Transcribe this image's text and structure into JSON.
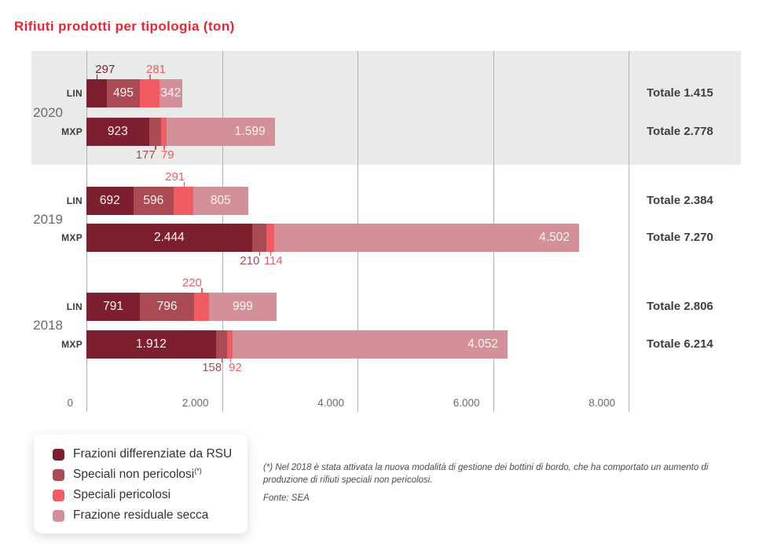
{
  "title": "Rifiuti prodotti per tipologia (ton)",
  "chart_data": {
    "type": "bar",
    "orientation": "horizontal",
    "title": "Rifiuti prodotti per tipologia (ton)",
    "unit": "ton",
    "xlim": [
      0,
      8000
    ],
    "grid": true,
    "legend_position": "bottom-left",
    "x_ticks": [
      "0",
      "2.000",
      "4.000",
      "6.000",
      "8.000"
    ],
    "x_tick_values": [
      0,
      2000,
      4000,
      6000,
      8000
    ],
    "series": [
      "Frazioni differenziate da RSU",
      "Speciali non pericolosi(*)",
      "Speciali pericolosi",
      "Frazione residuale secca"
    ],
    "series_colors": [
      "#7d1f2e",
      "#ac4a53",
      "#f15b62",
      "#d39099"
    ],
    "groups": [
      {
        "year": "2020",
        "highlighted": true,
        "rows": [
          {
            "airport": "LIN",
            "values": [
              297,
              495,
              281,
              342
            ],
            "value_labels": [
              "297",
              "495",
              "281",
              "342"
            ],
            "label_positions": [
              "above",
              "inside",
              "above",
              "inside"
            ],
            "total": 1415,
            "total_label": "Totale 1.415"
          },
          {
            "airport": "MXP",
            "values": [
              923,
              177,
              79,
              1599
            ],
            "value_labels": [
              "923",
              "177",
              "79",
              "1.599"
            ],
            "label_positions": [
              "inside",
              "below",
              "below",
              "inside"
            ],
            "total": 2778,
            "total_label": "Totale 2.778"
          }
        ]
      },
      {
        "year": "2019",
        "highlighted": false,
        "rows": [
          {
            "airport": "LIN",
            "values": [
              692,
              596,
              291,
              805
            ],
            "value_labels": [
              "692",
              "596",
              "291",
              "805"
            ],
            "label_positions": [
              "inside",
              "inside",
              "above",
              "inside"
            ],
            "total": 2384,
            "total_label": "Totale 2.384"
          },
          {
            "airport": "MXP",
            "values": [
              2444,
              210,
              114,
              4502
            ],
            "value_labels": [
              "2.444",
              "210",
              "114",
              "4.502"
            ],
            "label_positions": [
              "inside",
              "below",
              "below",
              "inside"
            ],
            "total": 7270,
            "total_label": "Totale 7.270"
          }
        ]
      },
      {
        "year": "2018",
        "highlighted": false,
        "rows": [
          {
            "airport": "LIN",
            "values": [
              791,
              796,
              220,
              999
            ],
            "value_labels": [
              "791",
              "796",
              "220",
              "999"
            ],
            "label_positions": [
              "inside",
              "inside",
              "above",
              "inside"
            ],
            "total": 2806,
            "total_label": "Totale 2.806"
          },
          {
            "airport": "MXP",
            "values": [
              1912,
              158,
              92,
              4052
            ],
            "value_labels": [
              "1.912",
              "158",
              "92",
              "4.052"
            ],
            "label_positions": [
              "inside",
              "below",
              "below",
              "inside"
            ],
            "total": 6214,
            "total_label": "Totale 6.214"
          }
        ]
      }
    ]
  },
  "legend": {
    "items": [
      {
        "label": "Frazioni differenziate da RSU",
        "color": "#7d1f2e"
      },
      {
        "label": "Speciali non pericolosi(*)",
        "color": "#ac4a53"
      },
      {
        "label": "Speciali pericolosi",
        "color": "#f15b62"
      },
      {
        "label": "Frazione residuale secca",
        "color": "#d39099"
      }
    ]
  },
  "footnote": {
    "text": "(*) Nel 2018 è stata attivata la nuova modalità di gestione dei bottini di bordo, che ha comportato un aumento di produzione di rifiuti speciali non pericolosi.",
    "source": "Fonte: SEA"
  },
  "colors": {
    "title": "#ee2430",
    "highlight_band": "#e9eaea",
    "gridline": "#b2b2b2",
    "axis_text": "#6a6a6a",
    "total_text": "#3f3f3f"
  }
}
